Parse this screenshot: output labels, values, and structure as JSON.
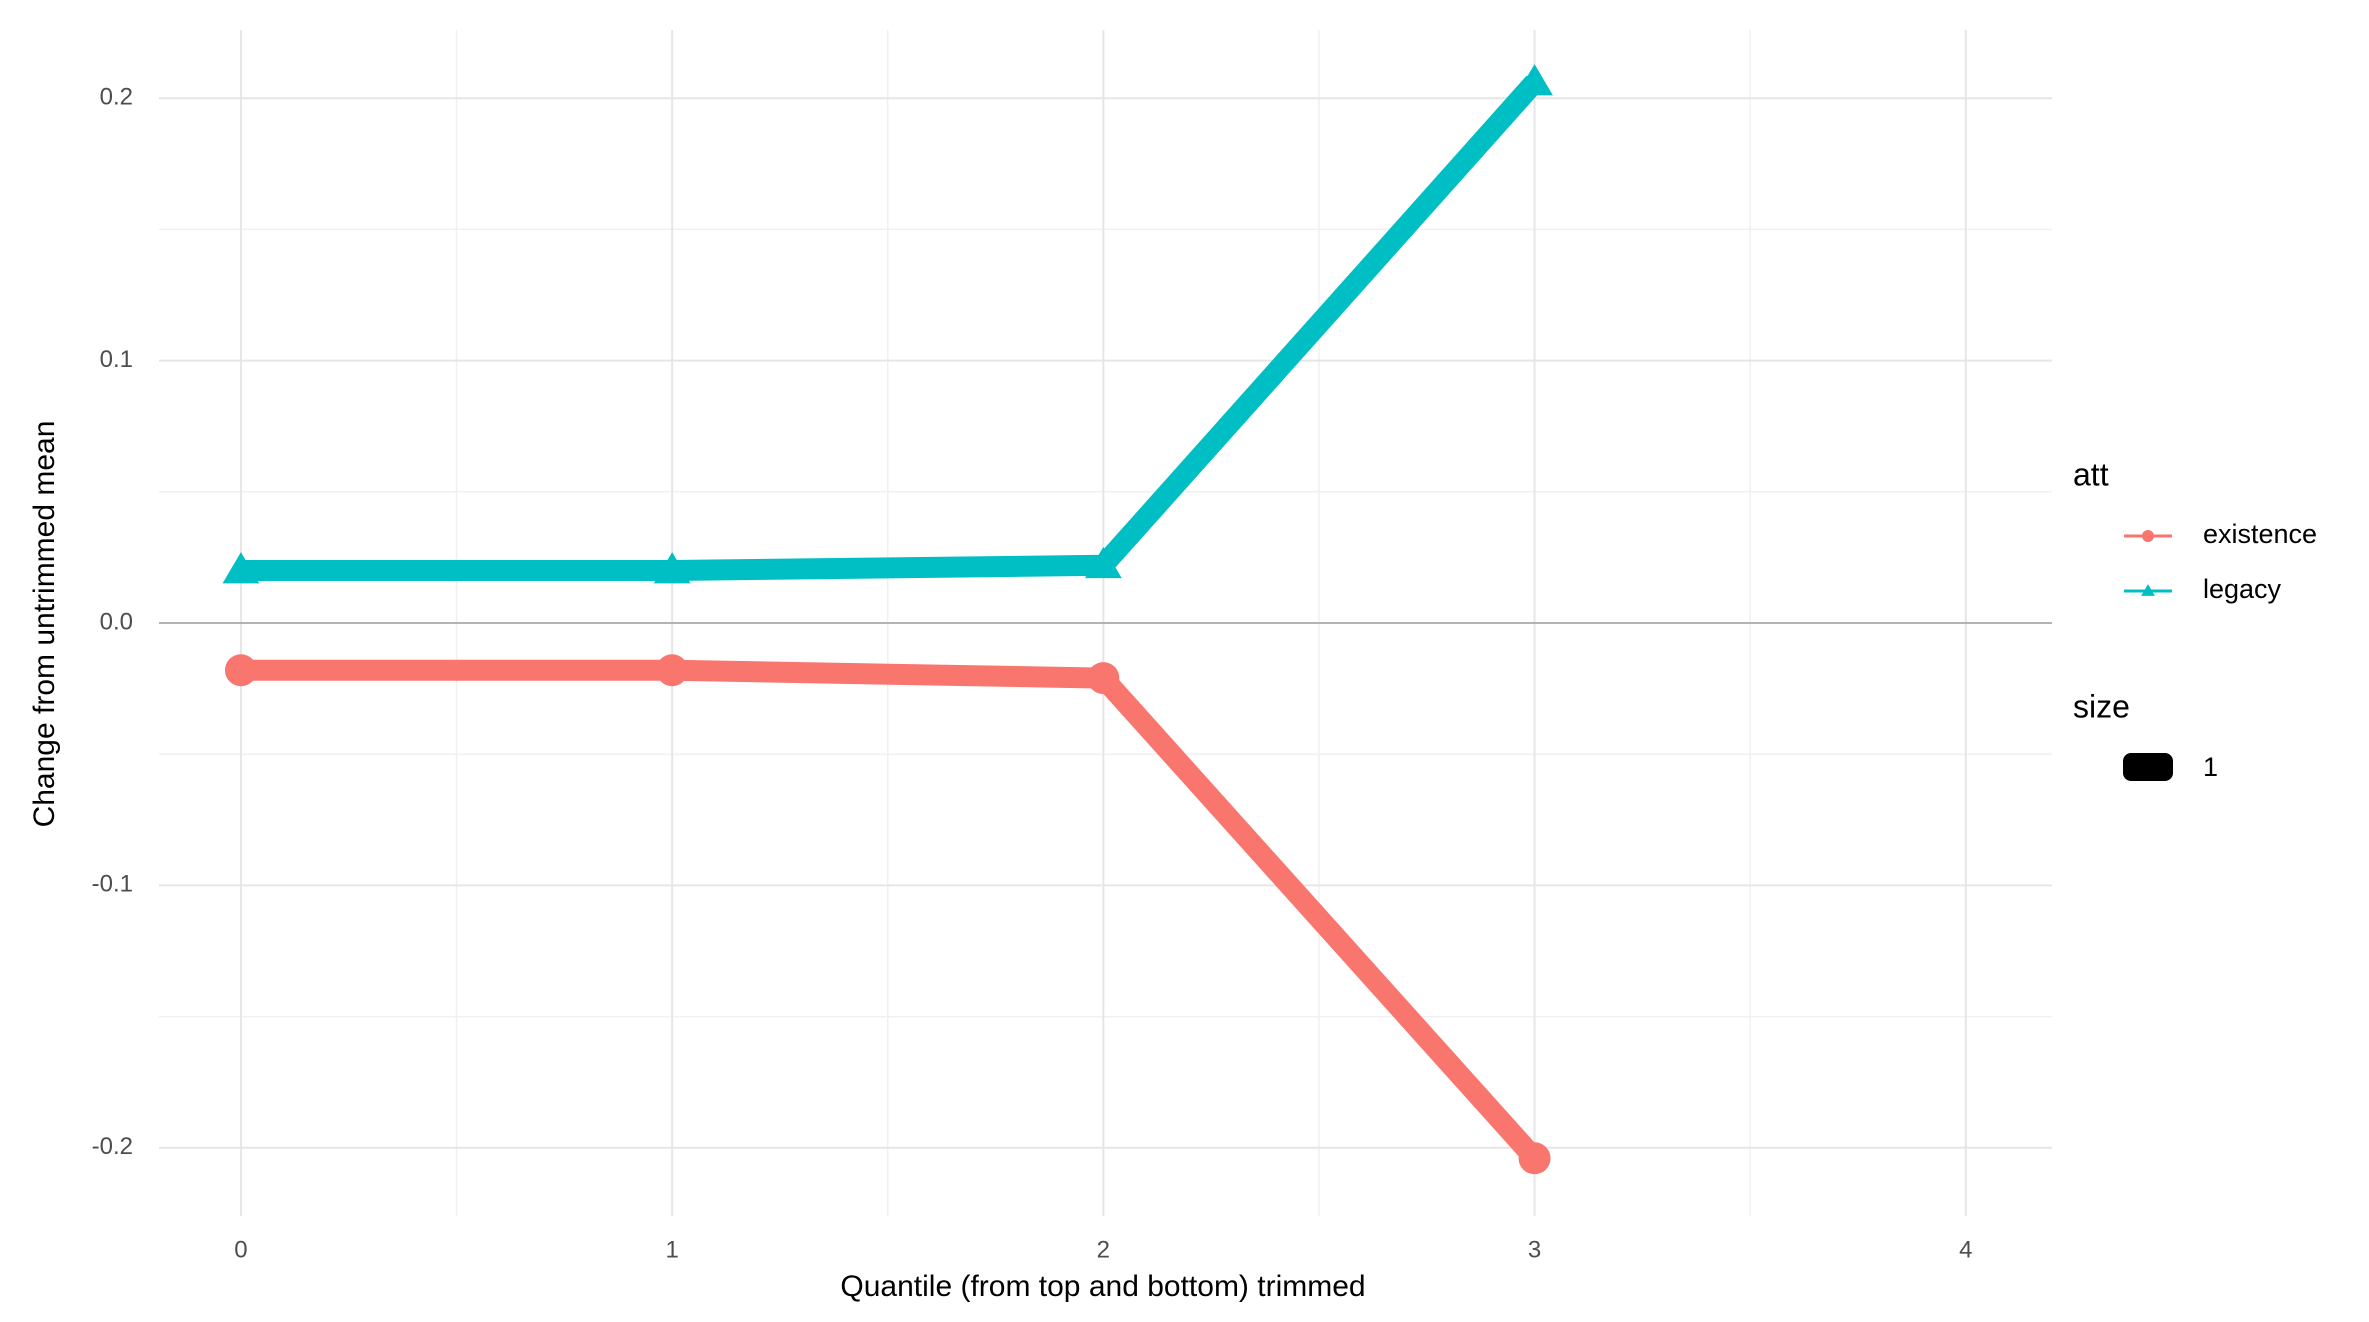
{
  "chart_data": {
    "type": "line",
    "x_label": "Quantile (from top and bottom) trimmed",
    "y_label": "Change from untrimmed mean",
    "x": [
      0,
      1,
      2,
      3
    ],
    "series": [
      {
        "name": "existence",
        "color": "#F8766D",
        "marker": "circle",
        "values": [
          -0.018,
          -0.018,
          -0.021,
          -0.204
        ]
      },
      {
        "name": "legacy",
        "color": "#00BFC4",
        "marker": "triangle",
        "values": [
          0.02,
          0.02,
          0.022,
          0.206
        ]
      }
    ],
    "xlim": [
      -0.19,
      4.2
    ],
    "ylim": [
      -0.226,
      0.226
    ],
    "xticks": [
      0,
      1,
      2,
      3,
      4
    ],
    "yticks": [
      -0.2,
      -0.1,
      {
        "value": 0,
        "label": "0.0"
      },
      0.1,
      0.2
    ],
    "hline": 0,
    "grid": true,
    "legend_title": "att",
    "size_legend": {
      "title": "size",
      "labels": [
        "1"
      ]
    }
  }
}
